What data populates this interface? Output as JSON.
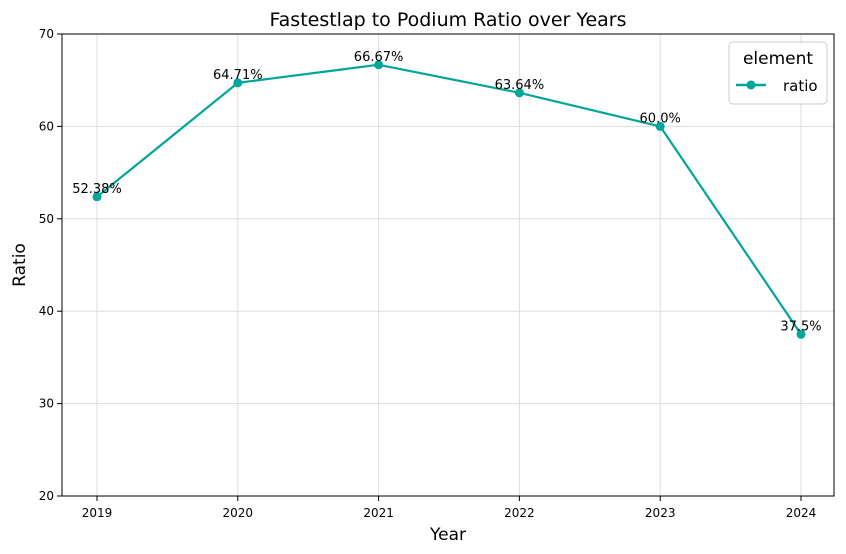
{
  "chart_data": {
    "type": "line",
    "title": "Fastestlap to Podium Ratio over Years",
    "xlabel": "Year",
    "ylabel": "Ratio",
    "x": [
      "2019",
      "2020",
      "2021",
      "2022",
      "2023",
      "2024"
    ],
    "ylim": [
      20,
      70
    ],
    "yticks": [
      "20",
      "30",
      "40",
      "50",
      "60",
      "70"
    ],
    "grid": true,
    "legend": {
      "title": "element",
      "placement": "top-right"
    },
    "series": [
      {
        "name": "ratio",
        "color": "#00a69a",
        "values": [
          52.38,
          64.71,
          66.67,
          63.64,
          60.0,
          37.5
        ],
        "labels": [
          "52.38%",
          "64.71%",
          "66.67%",
          "63.64%",
          "60.0%",
          "37.5%"
        ]
      }
    ]
  }
}
